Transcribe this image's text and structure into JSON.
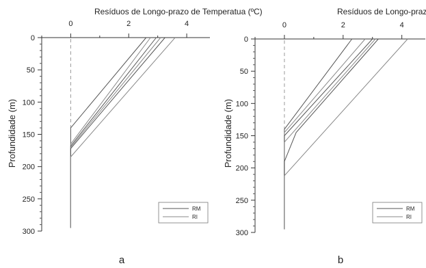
{
  "chart_data": [
    {
      "type": "line",
      "title": "Resíduos de Longo-prazo de Temperatua (ºC)",
      "ylabel": "Profundidade (m)",
      "panel_label": "a",
      "xlim": [
        -1,
        4.8
      ],
      "ylim": [
        300,
        0
      ],
      "y_inverted": true,
      "x_ticks": [
        "0",
        "2",
        "4"
      ],
      "y_ticks": [
        "0",
        "50",
        "100",
        "150",
        "200",
        "250",
        "300"
      ],
      "legend": [
        "RM",
        "RI"
      ],
      "legend_position": "bottom-right",
      "series": [
        {
          "points": [
            [
              0,
              295
            ],
            [
              0,
              140
            ],
            [
              2.6,
              0
            ]
          ]
        },
        {
          "points": [
            [
              0,
              295
            ],
            [
              0,
              165
            ],
            [
              2.75,
              0
            ]
          ]
        },
        {
          "points": [
            [
              0,
              295
            ],
            [
              0,
              168
            ],
            [
              2.95,
              0
            ]
          ]
        },
        {
          "points": [
            [
              0,
              295
            ],
            [
              0,
              170
            ],
            [
              3.1,
              0
            ]
          ]
        },
        {
          "points": [
            [
              0,
              295
            ],
            [
              0,
              172
            ],
            [
              3.25,
              0
            ]
          ]
        },
        {
          "points": [
            [
              0,
              295
            ],
            [
              0,
              185
            ],
            [
              3.6,
              0
            ]
          ]
        }
      ]
    },
    {
      "type": "line",
      "title": "Resíduos de Longo-prazo de Temperatua (ºC)",
      "ylabel": "Profundidade (m)",
      "panel_label": "b",
      "xlim": [
        -1,
        4.8
      ],
      "ylim": [
        300,
        0
      ],
      "y_inverted": true,
      "x_ticks": [
        "0",
        "2",
        "4"
      ],
      "y_ticks": [
        "0",
        "50",
        "100",
        "150",
        "200",
        "250",
        "300"
      ],
      "legend": [
        "RM",
        "RI"
      ],
      "legend_position": "bottom-right",
      "series": [
        {
          "points": [
            [
              0,
              295
            ],
            [
              0,
              140
            ],
            [
              2.3,
              0
            ]
          ]
        },
        {
          "points": [
            [
              0,
              295
            ],
            [
              0,
              145
            ],
            [
              2.75,
              0
            ]
          ]
        },
        {
          "points": [
            [
              0,
              295
            ],
            [
              0,
              150
            ],
            [
              3.0,
              0
            ]
          ]
        },
        {
          "points": [
            [
              0,
              295
            ],
            [
              0,
              160
            ],
            [
              3.1,
              0
            ]
          ]
        },
        {
          "points": [
            [
              0,
              295
            ],
            [
              0,
              190
            ],
            [
              0.4,
              145
            ],
            [
              3.2,
              0
            ]
          ]
        },
        {
          "points": [
            [
              0,
              295
            ],
            [
              0,
              212
            ],
            [
              4.2,
              0
            ]
          ]
        }
      ]
    }
  ]
}
